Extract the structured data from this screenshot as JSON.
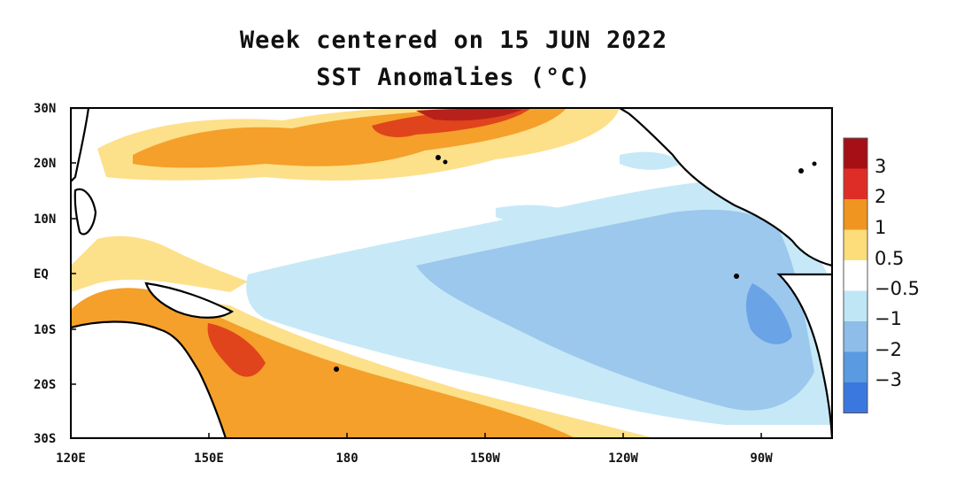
{
  "title": {
    "line1": "Week centered on 15 JUN 2022",
    "line2": "SST Anomalies (°C)"
  },
  "map": {
    "lat_labels": [
      "30N",
      "20N",
      "10N",
      "EQ",
      "10S",
      "20S",
      "30S"
    ],
    "lon_labels": [
      "120E",
      "150E",
      "180",
      "150W",
      "120W",
      "90W"
    ]
  },
  "colorbar": {
    "labels": [
      "3",
      "2",
      "1",
      "0.5",
      "−0.5",
      "−1",
      "−2",
      "−3"
    ],
    "colors": [
      "#a50f15",
      "#de2d26",
      "#f0951f",
      "#fddc7a",
      "#ffffff",
      "#bfe6f5",
      "#8dbde8",
      "#5a9ae0",
      "#3a78e0"
    ]
  },
  "palette": {
    "land": "#ffffff",
    "coast": "#000000",
    "ocean_neutral": "#ffffff",
    "warm_light": "#fde08a",
    "warm_mid": "#f4a02a",
    "warm_strong": "#e0441c",
    "warm_extreme": "#b8211b",
    "cool_light": "#c7e9f7",
    "cool_mid": "#9cc8ee",
    "cool_strong": "#6aa3e6"
  }
}
